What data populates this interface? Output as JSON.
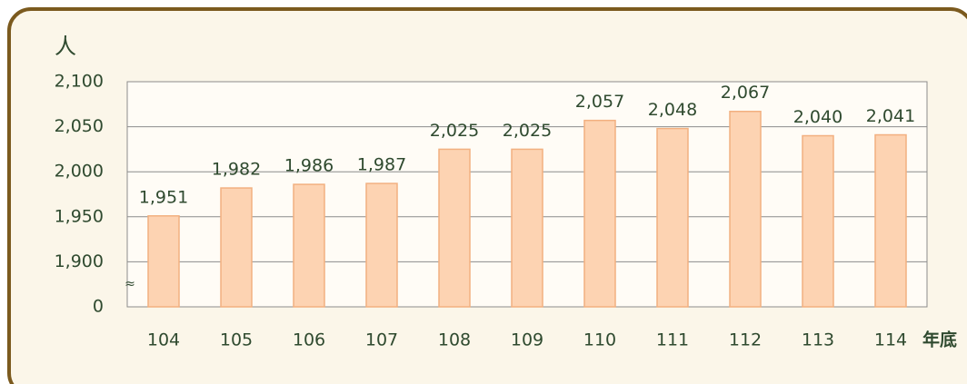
{
  "chart_data": {
    "type": "bar",
    "y_unit": "人",
    "x_unit": "年底",
    "categories": [
      "104",
      "105",
      "106",
      "107",
      "108",
      "109",
      "110",
      "111",
      "112",
      "113",
      "114"
    ],
    "values": [
      1951,
      1982,
      1986,
      1987,
      2025,
      2025,
      2057,
      2048,
      2067,
      2040,
      2041
    ],
    "value_labels": [
      "1,951",
      "1,982",
      "1,986",
      "1,987",
      "2,025",
      "2,025",
      "2,057",
      "2,048",
      "2,067",
      "2,040",
      "2,041"
    ],
    "color": "#fdd3b2",
    "ylim": [
      0,
      2100
    ],
    "yticks": [
      0,
      {
        "value": 1900,
        "label": "1,900"
      },
      {
        "value": 1950,
        "label": "1,950"
      },
      {
        "value": 2000,
        "label": "2,000"
      },
      {
        "value": 2050,
        "label": "2,050"
      },
      {
        "value": 2100,
        "label": "2,100"
      }
    ],
    "grid": true
  }
}
